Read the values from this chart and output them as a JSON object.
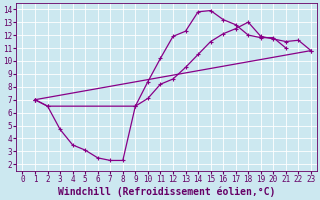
{
  "xlabel": "Windchill (Refroidissement éolien,°C)",
  "background_color": "#cce8f0",
  "grid_color": "#ffffff",
  "line_color": "#880088",
  "marker": "+",
  "markersize": 3,
  "linewidth": 0.9,
  "xlim": [
    -0.5,
    23.5
  ],
  "ylim": [
    1.5,
    14.5
  ],
  "xticks": [
    0,
    1,
    2,
    3,
    4,
    5,
    6,
    7,
    8,
    9,
    10,
    11,
    12,
    13,
    14,
    15,
    16,
    17,
    18,
    19,
    20,
    21,
    22,
    23
  ],
  "yticks": [
    2,
    3,
    4,
    5,
    6,
    7,
    8,
    9,
    10,
    11,
    12,
    13,
    14
  ],
  "line1_x": [
    1,
    2,
    3,
    4,
    5,
    6,
    7,
    8,
    9,
    10,
    11,
    12,
    13,
    14,
    15,
    16,
    17,
    18,
    19,
    20,
    21
  ],
  "line1_y": [
    7.0,
    6.5,
    4.7,
    3.5,
    3.1,
    2.5,
    2.3,
    2.3,
    6.5,
    8.4,
    10.2,
    11.9,
    12.3,
    13.8,
    13.9,
    13.2,
    12.8,
    12.0,
    11.8,
    11.8,
    11.0
  ],
  "line2_x": [
    1,
    2,
    9,
    10,
    11,
    12,
    13,
    14,
    15,
    16,
    17,
    18,
    19,
    20,
    21,
    22,
    23
  ],
  "line2_y": [
    7.0,
    6.5,
    6.5,
    7.1,
    8.2,
    8.6,
    9.5,
    10.5,
    11.5,
    12.1,
    12.5,
    13.0,
    11.9,
    11.7,
    11.5,
    11.6,
    10.8
  ],
  "line3_x": [
    1,
    23
  ],
  "line3_y": [
    7.0,
    10.8
  ],
  "tick_fontsize": 5.5,
  "label_fontsize": 7,
  "figsize": [
    3.2,
    2.0
  ],
  "dpi": 100
}
